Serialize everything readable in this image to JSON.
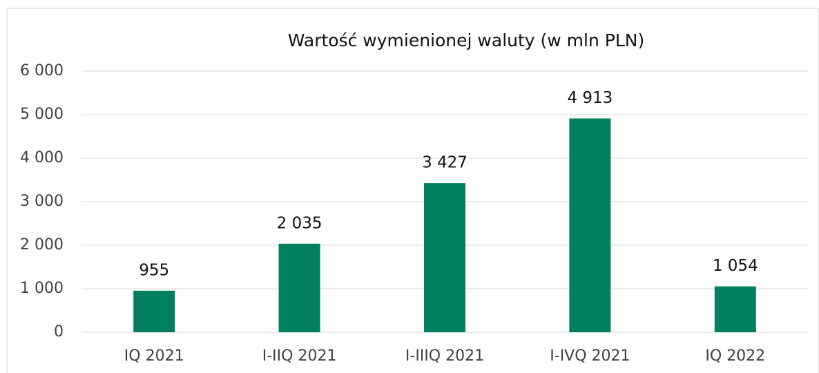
{
  "chart_data": {
    "type": "bar",
    "title": "Wartość wymienionej waluty (w mln PLN)",
    "categories": [
      "IQ 2021",
      "I-IIQ 2021",
      "I-IIIQ 2021",
      "I-IVQ 2021",
      "IQ 2022"
    ],
    "values": [
      955,
      2035,
      3427,
      4913,
      1054
    ],
    "value_labels": [
      "955",
      "2 035",
      "3 427",
      "4 913",
      "1 054"
    ],
    "color": "#008060",
    "ylim": [
      0,
      6000
    ],
    "yticks": [
      0,
      {
        "value": 1000,
        "label": "1 000"
      },
      {
        "value": 2000,
        "label": "2 000"
      },
      {
        "value": 3000,
        "label": "3 000"
      },
      {
        "value": 4000,
        "label": "4 000"
      },
      {
        "value": 5000,
        "label": "5 000"
      },
      {
        "value": 6000,
        "label": "6 000"
      }
    ],
    "grid": true
  }
}
